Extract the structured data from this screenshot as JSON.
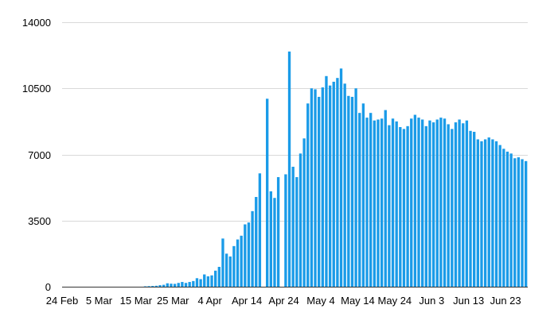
{
  "chart_data": {
    "type": "bar",
    "title": "",
    "xlabel": "",
    "ylabel": "",
    "ylim": [
      0,
      14000
    ],
    "yticks": [
      "0",
      "3500",
      "7000",
      "10500",
      "14000"
    ],
    "grid": true,
    "legend": "none",
    "bar_color": "#1a9be8",
    "x_tick_labels": [
      "24 Feb",
      "5 Mar",
      "15 Mar",
      "25 Mar",
      "4 Apr",
      "Apr 14",
      "Apr 24",
      "May 4",
      "May 14",
      "May 24",
      "Jun 3",
      "Jun 13",
      "Jun 23"
    ],
    "x_tick_index": [
      0,
      10,
      20,
      30,
      40,
      50,
      60,
      70,
      80,
      90,
      100,
      110,
      120
    ],
    "values": [
      0,
      0,
      0,
      0,
      0,
      0,
      0,
      0,
      0,
      0,
      0,
      0,
      0,
      0,
      0,
      0,
      0,
      0,
      0,
      0,
      0,
      0,
      20,
      30,
      40,
      50,
      80,
      100,
      180,
      160,
      150,
      200,
      250,
      200,
      250,
      300,
      450,
      400,
      650,
      550,
      600,
      850,
      1050,
      2550,
      1750,
      1600,
      2150,
      2500,
      2700,
      3300,
      3400,
      4000,
      4750,
      6000,
      0,
      9950,
      5050,
      4700,
      5800,
      0,
      5950,
      12450,
      6350,
      5800,
      7050,
      7850,
      9700,
      10500,
      10450,
      10050,
      10550,
      11150,
      10650,
      10850,
      11050,
      11550,
      10750,
      10100,
      10050,
      10500,
      9200,
      9700,
      8950,
      9200,
      8800,
      8850,
      8900,
      9350,
      8550,
      8900,
      8750,
      8450,
      8350,
      8500,
      8900,
      9100,
      8950,
      8850,
      8500,
      8800,
      8700,
      8850,
      8950,
      8900,
      8600,
      8350,
      8700,
      8850,
      8650,
      8800,
      8250,
      8200,
      7800,
      7700,
      7800,
      7900,
      7800,
      7700,
      7500,
      7300,
      7150,
      7050,
      6800,
      6850,
      6750,
      6650
    ]
  }
}
